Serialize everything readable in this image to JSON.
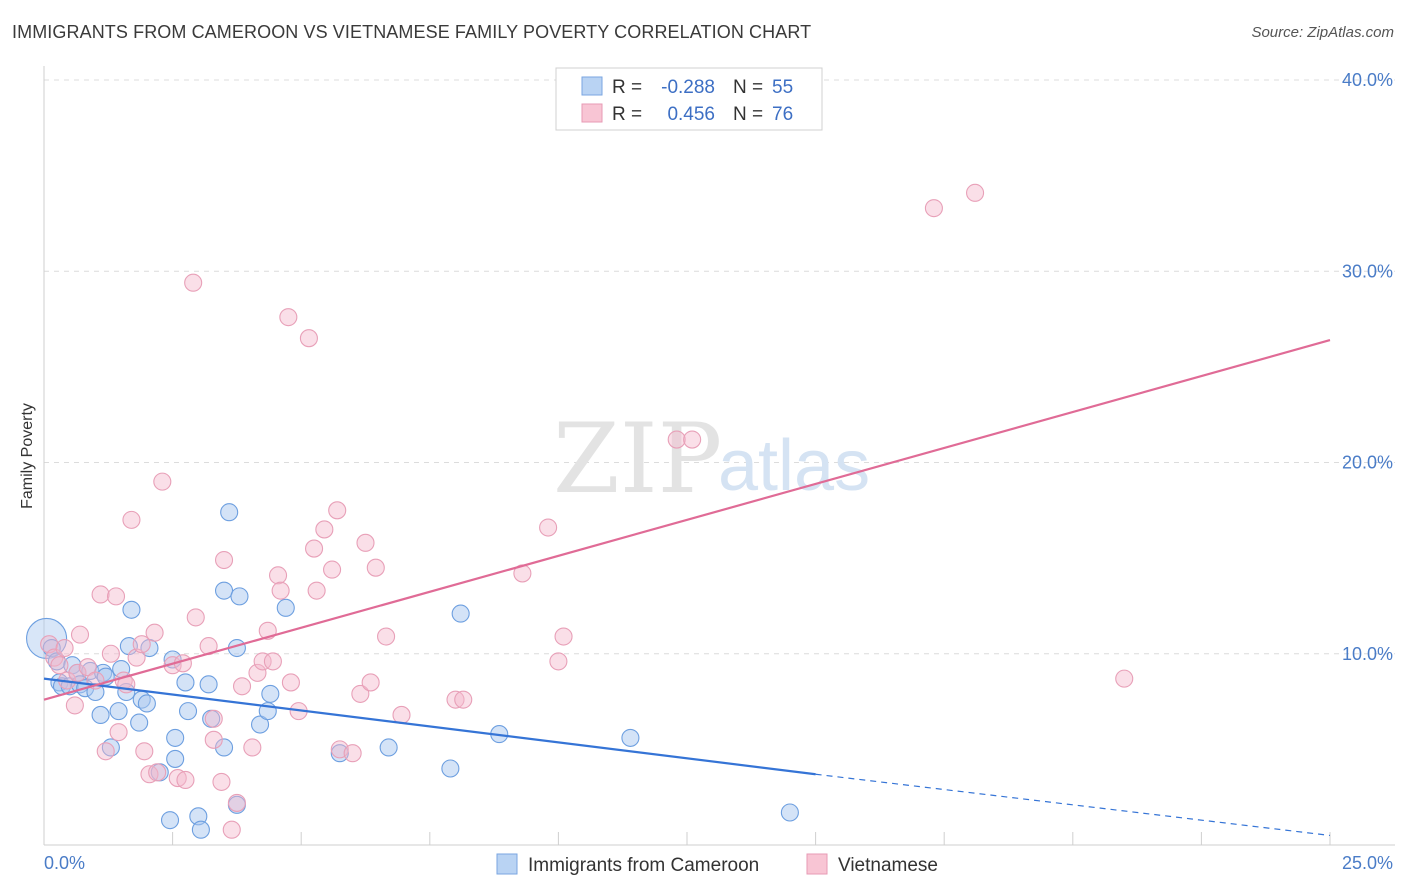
{
  "header": {
    "title": "IMMIGRANTS FROM CAMEROON VS VIETNAMESE FAMILY POVERTY CORRELATION CHART",
    "source": "Source: ZipAtlas.com"
  },
  "watermark": {
    "part1": "ZIP",
    "part2": "atlas"
  },
  "legend": {
    "r_label": "R =",
    "n_label": "N =",
    "items": [
      {
        "r": "-0.288",
        "n": "55"
      },
      {
        "r": "0.456",
        "n": "76"
      }
    ]
  },
  "bottom_legend": [
    "Immigrants from Cameroon",
    "Vietnamese"
  ],
  "chart_data": {
    "type": "scatter",
    "title": "IMMIGRANTS FROM CAMEROON VS VIETNAMESE FAMILY POVERTY CORRELATION CHART",
    "xlabel": "",
    "ylabel": "Family Poverty",
    "xlim": [
      0,
      25
    ],
    "ylim": [
      0,
      40
    ],
    "x_tick_labels": [
      "0.0%",
      "25.0%"
    ],
    "y_ticks": [
      10,
      20,
      30,
      40
    ],
    "y_tick_labels": [
      "10.0%",
      "20.0%",
      "30.0%",
      "40.0%"
    ],
    "colors": {
      "cameroon": "#a9c8f0",
      "cameroon_line": "#3574d6",
      "vietnamese": "#f5b8cb",
      "vietnamese_line": "#e06b96",
      "axis_label": "#4a7cc7"
    },
    "series": [
      {
        "name": "Immigrants from Cameroon",
        "trend": {
          "x0": 0,
          "y0": 8.7,
          "x1": 15,
          "y1": 3.7,
          "dashed_to_x": 25,
          "dashed_to_y": 0.5
        },
        "points": [
          [
            0.05,
            10.8,
            "big"
          ],
          [
            0.15,
            10.3
          ],
          [
            0.25,
            9.6
          ],
          [
            0.3,
            8.5
          ],
          [
            0.35,
            8.3
          ],
          [
            0.5,
            8.3
          ],
          [
            0.55,
            9.4
          ],
          [
            0.65,
            9.0
          ],
          [
            0.7,
            8.4
          ],
          [
            0.8,
            8.2
          ],
          [
            0.9,
            9.1
          ],
          [
            1.0,
            8.0
          ],
          [
            1.1,
            6.8
          ],
          [
            1.15,
            9.0
          ],
          [
            1.2,
            8.8
          ],
          [
            1.3,
            5.1
          ],
          [
            1.45,
            7.0
          ],
          [
            1.5,
            9.2
          ],
          [
            1.6,
            8.0
          ],
          [
            1.7,
            12.3
          ],
          [
            1.65,
            10.4
          ],
          [
            1.85,
            6.4
          ],
          [
            1.9,
            7.6
          ],
          [
            2.0,
            7.4
          ],
          [
            2.05,
            10.3
          ],
          [
            2.25,
            3.8
          ],
          [
            2.45,
            1.3
          ],
          [
            2.5,
            9.7
          ],
          [
            2.55,
            5.6
          ],
          [
            2.55,
            4.5
          ],
          [
            2.8,
            7.0
          ],
          [
            2.75,
            8.5
          ],
          [
            3.0,
            1.5
          ],
          [
            3.05,
            0.8
          ],
          [
            3.25,
            6.6
          ],
          [
            3.2,
            8.4
          ],
          [
            3.5,
            13.3
          ],
          [
            3.5,
            5.1
          ],
          [
            3.6,
            17.4
          ],
          [
            3.75,
            10.3
          ],
          [
            3.8,
            13.0
          ],
          [
            3.75,
            2.1
          ],
          [
            4.2,
            6.3
          ],
          [
            4.35,
            7.0
          ],
          [
            4.4,
            7.9
          ],
          [
            4.7,
            12.4
          ],
          [
            5.75,
            4.8
          ],
          [
            6.7,
            5.1
          ],
          [
            7.9,
            4.0
          ],
          [
            8.1,
            12.1
          ],
          [
            8.85,
            5.8
          ],
          [
            11.4,
            5.6
          ],
          [
            14.5,
            1.7
          ]
        ]
      },
      {
        "name": "Vietnamese",
        "trend": {
          "x0": 0,
          "y0": 7.6,
          "x1": 25,
          "y1": 26.4
        },
        "points": [
          [
            0.1,
            10.5
          ],
          [
            0.2,
            9.8
          ],
          [
            0.3,
            9.4
          ],
          [
            0.4,
            10.3
          ],
          [
            0.45,
            8.6
          ],
          [
            0.6,
            7.3
          ],
          [
            0.65,
            9.0
          ],
          [
            0.7,
            11.0
          ],
          [
            0.85,
            9.3
          ],
          [
            1.0,
            8.6
          ],
          [
            1.1,
            13.1
          ],
          [
            1.2,
            4.9
          ],
          [
            1.3,
            10.0
          ],
          [
            1.4,
            13.0
          ],
          [
            1.45,
            5.9
          ],
          [
            1.55,
            8.6
          ],
          [
            1.6,
            8.4
          ],
          [
            1.7,
            17.0
          ],
          [
            1.8,
            9.8
          ],
          [
            1.9,
            10.5
          ],
          [
            1.95,
            4.9
          ],
          [
            2.05,
            3.7
          ],
          [
            2.15,
            11.1
          ],
          [
            2.2,
            3.8
          ],
          [
            2.3,
            19.0
          ],
          [
            2.5,
            9.4
          ],
          [
            2.6,
            3.5
          ],
          [
            2.7,
            9.5
          ],
          [
            2.75,
            3.4
          ],
          [
            2.9,
            29.4
          ],
          [
            2.95,
            11.9
          ],
          [
            3.2,
            10.4
          ],
          [
            3.3,
            6.6
          ],
          [
            3.3,
            5.5
          ],
          [
            3.45,
            3.3
          ],
          [
            3.5,
            14.9
          ],
          [
            3.65,
            0.8
          ],
          [
            3.75,
            2.2
          ],
          [
            3.85,
            8.3
          ],
          [
            4.05,
            5.1
          ],
          [
            4.15,
            9.0
          ],
          [
            4.25,
            9.6
          ],
          [
            4.35,
            11.2
          ],
          [
            4.45,
            9.6
          ],
          [
            4.55,
            14.1
          ],
          [
            4.6,
            13.3
          ],
          [
            4.75,
            27.6
          ],
          [
            4.8,
            8.5
          ],
          [
            4.95,
            7.0
          ],
          [
            5.15,
            26.5
          ],
          [
            5.25,
            15.5
          ],
          [
            5.3,
            13.3
          ],
          [
            5.45,
            16.5
          ],
          [
            5.6,
            14.4
          ],
          [
            5.7,
            17.5
          ],
          [
            5.75,
            5.0
          ],
          [
            6.0,
            4.8
          ],
          [
            6.15,
            7.9
          ],
          [
            6.25,
            15.8
          ],
          [
            6.35,
            8.5
          ],
          [
            6.45,
            14.5
          ],
          [
            6.65,
            10.9
          ],
          [
            6.95,
            6.8
          ],
          [
            8.0,
            7.6
          ],
          [
            8.15,
            7.6
          ],
          [
            9.3,
            14.2
          ],
          [
            9.8,
            16.6
          ],
          [
            10.0,
            9.6
          ],
          [
            10.1,
            10.9
          ],
          [
            12.3,
            21.2
          ],
          [
            12.6,
            21.2
          ],
          [
            17.3,
            33.3
          ],
          [
            18.1,
            34.1
          ],
          [
            21.0,
            8.7
          ]
        ]
      }
    ]
  }
}
